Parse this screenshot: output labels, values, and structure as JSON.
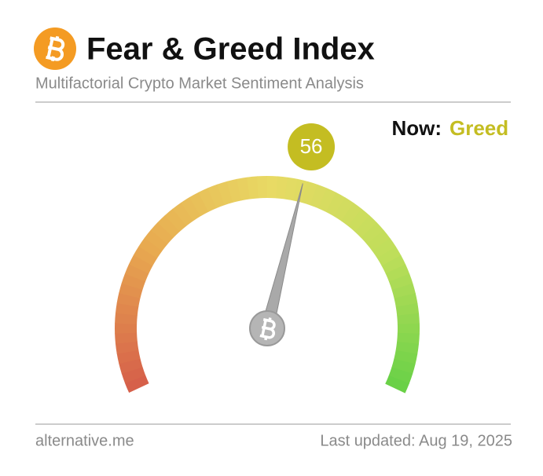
{
  "chart_data": {
    "type": "gauge",
    "title": "Fear & Greed Index",
    "subtitle": "Multifactorial Crypto Market Sentiment Analysis",
    "value": 56,
    "ylim": [
      0,
      100
    ],
    "status_label": "Now:",
    "classification": "Greed",
    "color": "#c4bd22",
    "source": "alternative.me",
    "updated": "Last updated: Aug 19, 2025"
  }
}
